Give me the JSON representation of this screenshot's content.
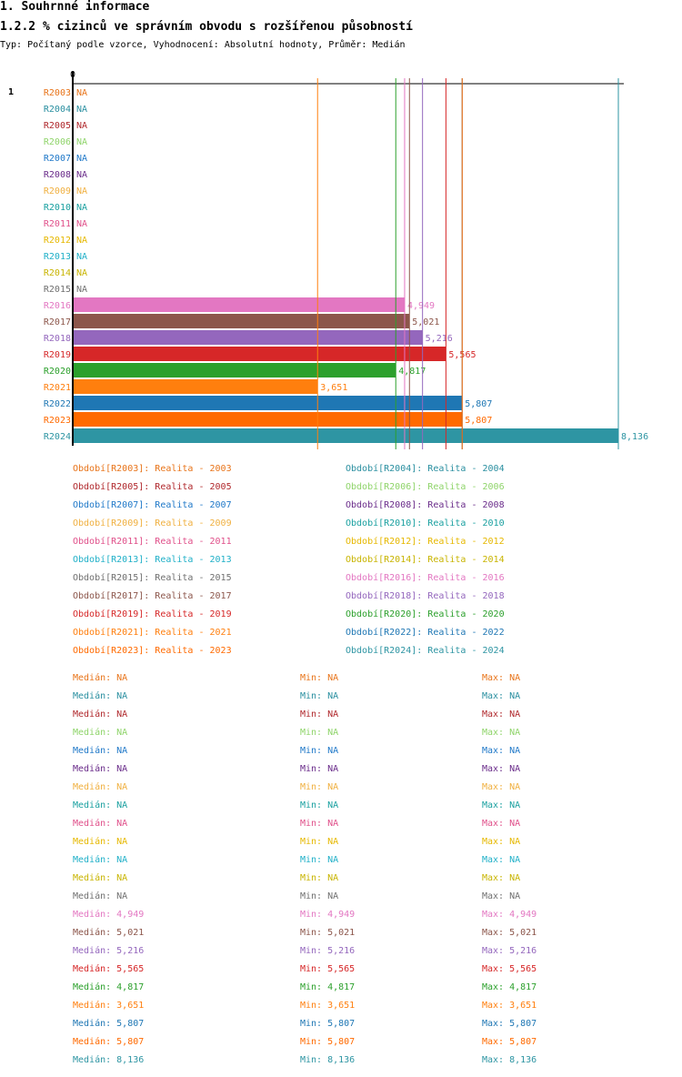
{
  "header": {
    "section_title": "1. Souhrnné informace",
    "chart_title": "1.2.2 % cizinců ve správním obvodu s rozšířenou působností",
    "subtitle": "Typ: Počítaný podle vzorce, Vyhodnocení: Absolutní hodnoty, Průměr: Medián"
  },
  "chart_data": {
    "type": "bar",
    "orientation": "horizontal",
    "group_label": "1",
    "axis_zero_label": "0",
    "xlim": [
      0,
      8300
    ],
    "categories": [
      "R2003",
      "R2004",
      "R2005",
      "R2006",
      "R2007",
      "R2008",
      "R2009",
      "R2010",
      "R2011",
      "R2012",
      "R2013",
      "R2014",
      "R2015",
      "R2016",
      "R2017",
      "R2018",
      "R2019",
      "R2020",
      "R2021",
      "R2022",
      "R2023",
      "R2024"
    ],
    "values": [
      null,
      null,
      null,
      null,
      null,
      null,
      null,
      null,
      null,
      null,
      null,
      null,
      null,
      4949,
      5021,
      5216,
      5565,
      4817,
      3651,
      5807,
      5807,
      8136
    ],
    "value_labels": [
      "NA",
      "NA",
      "NA",
      "NA",
      "NA",
      "NA",
      "NA",
      "NA",
      "NA",
      "NA",
      "NA",
      "NA",
      "NA",
      "4,949",
      "5,021",
      "5,216",
      "5,565",
      "4,817",
      "3,651",
      "5,807",
      "5,807",
      "8,136"
    ],
    "colors": [
      "#e8741a",
      "#2a8fa0",
      "#b0282c",
      "#8fd46a",
      "#1f78c8",
      "#6a2c8a",
      "#f0b040",
      "#1aa0a0",
      "#e0508a",
      "#e6b800",
      "#20b0c8",
      "#c8b400",
      "#707070",
      "#e377c2",
      "#8c564b",
      "#9467bd",
      "#d62728",
      "#2ca02c",
      "#ff7f0e",
      "#1f77b4",
      "#ff6a00",
      "#2e95a3"
    ],
    "legend": [
      "Období[R2003]: Realita - 2003",
      "Období[R2004]: Realita - 2004",
      "Období[R2005]: Realita - 2005",
      "Období[R2006]: Realita - 2006",
      "Období[R2007]: Realita - 2007",
      "Období[R2008]: Realita - 2008",
      "Období[R2009]: Realita - 2009",
      "Období[R2010]: Realita - 2010",
      "Období[R2011]: Realita - 2011",
      "Období[R2012]: Realita - 2012",
      "Období[R2013]: Realita - 2013",
      "Období[R2014]: Realita - 2014",
      "Období[R2015]: Realita - 2015",
      "Období[R2016]: Realita - 2016",
      "Období[R2017]: Realita - 2017",
      "Období[R2018]: Realita - 2018",
      "Období[R2019]: Realita - 2019",
      "Období[R2020]: Realita - 2020",
      "Období[R2021]: Realita - 2021",
      "Období[R2022]: Realita - 2022",
      "Období[R2023]: Realita - 2023",
      "Období[R2024]: Realita - 2024"
    ],
    "stats": [
      {
        "median": "Medián: NA",
        "min": "Min: NA",
        "max": "Max: NA"
      },
      {
        "median": "Medián: NA",
        "min": "Min: NA",
        "max": "Max: NA"
      },
      {
        "median": "Medián: NA",
        "min": "Min: NA",
        "max": "Max: NA"
      },
      {
        "median": "Medián: NA",
        "min": "Min: NA",
        "max": "Max: NA"
      },
      {
        "median": "Medián: NA",
        "min": "Min: NA",
        "max": "Max: NA"
      },
      {
        "median": "Medián: NA",
        "min": "Min: NA",
        "max": "Max: NA"
      },
      {
        "median": "Medián: NA",
        "min": "Min: NA",
        "max": "Max: NA"
      },
      {
        "median": "Medián: NA",
        "min": "Min: NA",
        "max": "Max: NA"
      },
      {
        "median": "Medián: NA",
        "min": "Min: NA",
        "max": "Max: NA"
      },
      {
        "median": "Medián: NA",
        "min": "Min: NA",
        "max": "Max: NA"
      },
      {
        "median": "Medián: NA",
        "min": "Min: NA",
        "max": "Max: NA"
      },
      {
        "median": "Medián: NA",
        "min": "Min: NA",
        "max": "Max: NA"
      },
      {
        "median": "Medián: NA",
        "min": "Min: NA",
        "max": "Max: NA"
      },
      {
        "median": "Medián: 4,949",
        "min": "Min: 4,949",
        "max": "Max: 4,949"
      },
      {
        "median": "Medián: 5,021",
        "min": "Min: 5,021",
        "max": "Max: 5,021"
      },
      {
        "median": "Medián: 5,216",
        "min": "Min: 5,216",
        "max": "Max: 5,216"
      },
      {
        "median": "Medián: 5,565",
        "min": "Min: 5,565",
        "max": "Max: 5,565"
      },
      {
        "median": "Medián: 4,817",
        "min": "Min: 4,817",
        "max": "Max: 4,817"
      },
      {
        "median": "Medián: 3,651",
        "min": "Min: 3,651",
        "max": "Max: 3,651"
      },
      {
        "median": "Medián: 5,807",
        "min": "Min: 5,807",
        "max": "Max: 5,807"
      },
      {
        "median": "Medián: 5,807",
        "min": "Min: 5,807",
        "max": "Max: 5,807"
      },
      {
        "median": "Medián: 8,136",
        "min": "Min: 8,136",
        "max": "Max: 8,136"
      }
    ]
  }
}
